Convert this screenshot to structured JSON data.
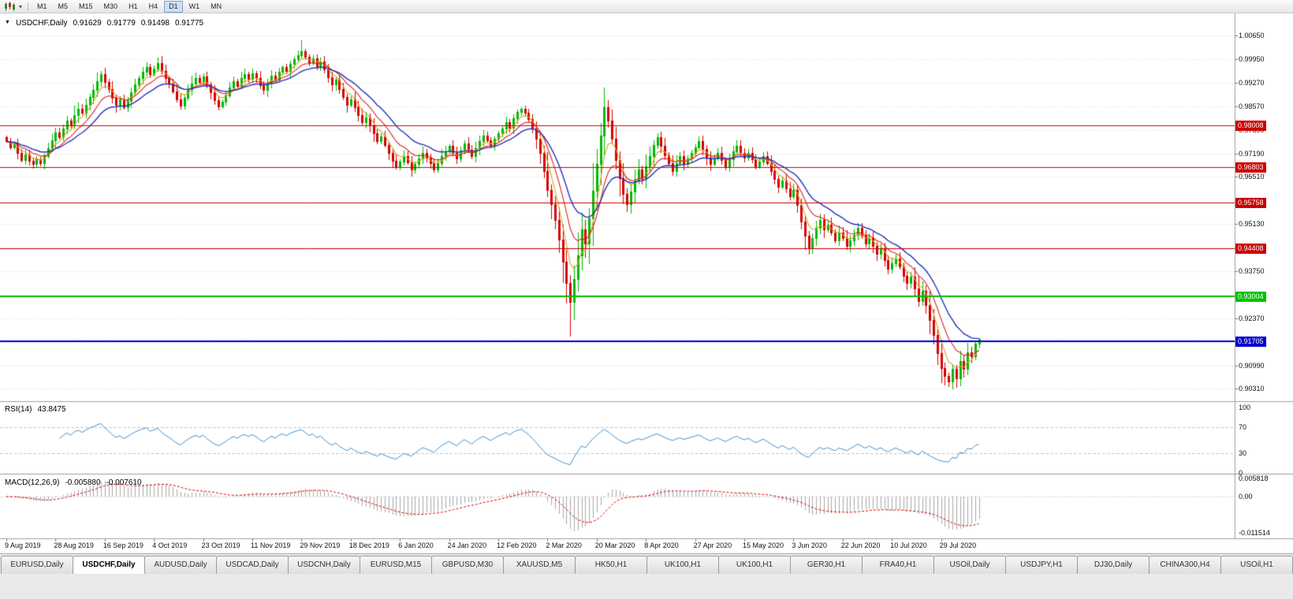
{
  "toolbar": {
    "timeframes": [
      "M1",
      "M5",
      "M15",
      "M30",
      "H1",
      "H4",
      "D1",
      "W1",
      "MN"
    ],
    "active_timeframe": "D1"
  },
  "chart": {
    "title": {
      "expand_marker": "▼",
      "symbol": "USDCHF,Daily",
      "open": "0.91629",
      "high": "0.91779",
      "low": "0.91498",
      "close": "0.91775"
    },
    "price_axis_labels": [
      "1.00650",
      "0.99950",
      "0.99270",
      "0.98570",
      "0.97890",
      "0.97190",
      "0.96510",
      "0.95810",
      "0.95130",
      "0.94430",
      "0.93750",
      "0.93050",
      "0.92370",
      "0.91670",
      "0.90990",
      "0.90310"
    ],
    "hlines": [
      {
        "price": 0.98008,
        "label": "0.98008",
        "color": "#cc0000",
        "width": 1
      },
      {
        "price": 0.96803,
        "label": "0.96803",
        "color": "#cc0000",
        "width": 1
      },
      {
        "price": 0.95758,
        "label": "0.95758",
        "color": "#cc0000",
        "width": 1
      },
      {
        "price": 0.94408,
        "label": "0.94408",
        "color": "#cc0000",
        "width": 1
      },
      {
        "price": 0.93004,
        "label": "0.93004",
        "color": "#00c200",
        "width": 2
      },
      {
        "price": 0.91705,
        "label": "0.91705",
        "color": "#0000cc",
        "width": 2
      }
    ]
  },
  "indicators": {
    "rsi": {
      "name": "RSI(14)",
      "value": "43.8475",
      "period": 14,
      "axis_labels": [
        100,
        70,
        30,
        0
      ],
      "levels": [
        70,
        30
      ],
      "color": "#3d8fd1"
    },
    "macd": {
      "name": "MACD(12,26,9)",
      "main_value": "-0.005880",
      "signal_value": "-0.007610",
      "axis_labels": [
        "0.005818",
        "0.00",
        "-0.011514"
      ],
      "hist_color": "#a8a8a8",
      "signal_color": "#dd0000"
    }
  },
  "chart_data": {
    "type": "candlestick",
    "symbol": "USDCHF",
    "timeframe": "Daily",
    "price_range": [
      0.9031,
      1.0065
    ],
    "up_color": "#00b800",
    "down_color": "#d40000",
    "date_labels": [
      "9 Aug 2019",
      "28 Aug 2019",
      "16 Sep 2019",
      "4 Oct 2019",
      "23 Oct 2019",
      "11 Nov 2019",
      "29 Nov 2019",
      "18 Dec 2019",
      "6 Jan 2020",
      "24 Jan 2020",
      "12 Feb 2020",
      "2 Mar 2020",
      "20 Mar 2020",
      "8 Apr 2020",
      "27 Apr 2020",
      "15 May 2020",
      "3 Jun 2020",
      "22 Jun 2020",
      "10 Jul 2020",
      "29 Jul 2020"
    ],
    "closes": [
      0.9755,
      0.9738,
      0.9748,
      0.9722,
      0.9701,
      0.9716,
      0.9698,
      0.9688,
      0.9702,
      0.9691,
      0.9712,
      0.9735,
      0.9758,
      0.9781,
      0.9768,
      0.9792,
      0.9815,
      0.9801,
      0.9832,
      0.9851,
      0.9838,
      0.9862,
      0.9886,
      0.9905,
      0.9932,
      0.9951,
      0.9928,
      0.9907,
      0.9882,
      0.9861,
      0.9878,
      0.9856,
      0.9873,
      0.9898,
      0.9921,
      0.994,
      0.9958,
      0.9972,
      0.9951,
      0.9968,
      0.9985,
      0.9962,
      0.9941,
      0.9925,
      0.9902,
      0.9878,
      0.986,
      0.9882,
      0.9906,
      0.9925,
      0.9941,
      0.9928,
      0.9945,
      0.9921,
      0.9898,
      0.9875,
      0.9858,
      0.9871,
      0.989,
      0.9912,
      0.9931,
      0.9918,
      0.994,
      0.9952,
      0.9938,
      0.9955,
      0.9941,
      0.992,
      0.9905,
      0.9926,
      0.9948,
      0.9935,
      0.9958,
      0.9972,
      0.996,
      0.9981,
      0.9995,
      1.0008,
      1.0018,
      1.0002,
      0.9985,
      0.9998,
      0.9975,
      0.9988,
      0.9965,
      0.9942,
      0.9921,
      0.9935,
      0.9908,
      0.9885,
      0.9862,
      0.9878,
      0.9855,
      0.9832,
      0.981,
      0.9825,
      0.9801,
      0.9778,
      0.9756,
      0.977,
      0.9745,
      0.9722,
      0.9698,
      0.9681,
      0.9695,
      0.9712,
      0.9694,
      0.9672,
      0.9688,
      0.9705,
      0.9722,
      0.9708,
      0.969,
      0.9672,
      0.9691,
      0.9712,
      0.9726,
      0.9741,
      0.9722,
      0.9705,
      0.9728,
      0.9748,
      0.9731,
      0.9712,
      0.9735,
      0.9756,
      0.9772,
      0.9758,
      0.9742,
      0.9762,
      0.9778,
      0.9792,
      0.981,
      0.9795,
      0.9822,
      0.984,
      0.9851,
      0.9838,
      0.982,
      0.9795,
      0.9762,
      0.9722,
      0.9668,
      0.9612,
      0.9572,
      0.9525,
      0.9468,
      0.9402,
      0.9341,
      0.9285,
      0.9352,
      0.9421,
      0.9498,
      0.9455,
      0.953,
      0.9611,
      0.9688,
      0.9772,
      0.9855,
      0.9815,
      0.9762,
      0.9701,
      0.9648,
      0.9601,
      0.9572,
      0.9608,
      0.9641,
      0.9672,
      0.9645,
      0.9682,
      0.9712,
      0.9745,
      0.9768,
      0.9741,
      0.9715,
      0.9692,
      0.9668,
      0.9691,
      0.9712,
      0.9688,
      0.9705,
      0.9722,
      0.9738,
      0.9755,
      0.9732,
      0.9708,
      0.9688,
      0.9705,
      0.9722,
      0.9701,
      0.9682,
      0.9702,
      0.9725,
      0.9741,
      0.9722,
      0.9708,
      0.9722,
      0.9702,
      0.9681,
      0.9695,
      0.9712,
      0.9692,
      0.9668,
      0.9645,
      0.9622,
      0.9641,
      0.9618,
      0.9595,
      0.9612,
      0.9568,
      0.9521,
      0.9478,
      0.9442,
      0.9471,
      0.9502,
      0.9525,
      0.9498,
      0.9512,
      0.9488,
      0.9465,
      0.9488,
      0.9472,
      0.9448,
      0.9465,
      0.9482,
      0.9502,
      0.9478,
      0.9455,
      0.9472,
      0.9448,
      0.9425,
      0.9441,
      0.9408,
      0.9382,
      0.9398,
      0.9412,
      0.9388,
      0.9362,
      0.9341,
      0.9358,
      0.9325,
      0.9288,
      0.9318,
      0.9275,
      0.9232,
      0.9188,
      0.9135,
      0.9092,
      0.9068,
      0.9052,
      0.9088,
      0.9061,
      0.9112,
      0.9089,
      0.9138,
      0.9125,
      0.9162,
      0.91775
    ],
    "wick_overrides": {
      "78": {
        "high": 1.0052
      },
      "149": {
        "low": 0.9183
      },
      "249": {
        "low": 0.9035
      }
    },
    "last_candle": {
      "open": 0.91629,
      "high": 0.91779,
      "low": 0.91498,
      "close": 0.91775
    },
    "moving_averages": [
      {
        "name": "fast-ma",
        "period": 5,
        "color": "#d9a520"
      },
      {
        "name": "medium-ma",
        "period": 10,
        "color": "#e02222"
      },
      {
        "name": "slow-ma",
        "period": 18,
        "color": "#2233bb"
      }
    ]
  },
  "tabs": {
    "items": [
      "EURUSD,Daily",
      "USDCHF,Daily",
      "AUDUSD,Daily",
      "USDCAD,Daily",
      "USDCNH,Daily",
      "EURUSD,M15",
      "GBPUSD,M30",
      "XAUUSD,M5",
      "HK50,H1",
      "UK100,H1",
      "UK100,H1",
      "GER30,H1",
      "FRA40,H1",
      "USOil,Daily",
      "USDJPY,H1",
      "DJ30,Daily",
      "CHINA300,H4",
      "USOil,H1"
    ],
    "active_index": 1
  }
}
